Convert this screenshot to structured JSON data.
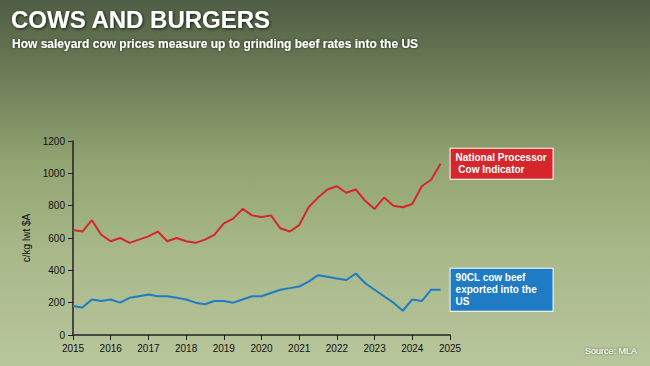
{
  "chart_data": {
    "type": "line",
    "title": "COWS AND BURGERS",
    "subtitle": "How saleyard cow prices measure up to grinding beef rates into the US",
    "y_label": "c/kg lwt $A",
    "annotations": [
      "Source: MLA"
    ],
    "x": [
      2015,
      2015.25,
      2015.5,
      2015.75,
      2016,
      2016.25,
      2016.5,
      2016.75,
      2017,
      2017.25,
      2017.5,
      2017.75,
      2018,
      2018.25,
      2018.5,
      2018.75,
      2019,
      2019.25,
      2019.5,
      2019.75,
      2020,
      2020.25,
      2020.5,
      2020.75,
      2021,
      2021.25,
      2021.5,
      2021.75,
      2022,
      2022.25,
      2022.5,
      2022.75,
      2023,
      2023.25,
      2023.5,
      2023.75,
      2024,
      2024.25,
      2024.5,
      2024.75
    ],
    "series": [
      {
        "name": "National Processor Cow Indicator",
        "color": "#d7262b",
        "values": [
          650,
          640,
          710,
          620,
          580,
          600,
          570,
          590,
          610,
          640,
          580,
          600,
          580,
          570,
          590,
          620,
          690,
          720,
          780,
          740,
          730,
          740,
          660,
          640,
          680,
          790,
          850,
          900,
          920,
          880,
          900,
          830,
          780,
          850,
          800,
          790,
          810,
          920,
          960,
          1060
        ]
      },
      {
        "name": "90CL cow beef exported into the US",
        "color": "#1e7bc4",
        "values": [
          180,
          170,
          220,
          210,
          220,
          200,
          230,
          240,
          250,
          240,
          240,
          230,
          220,
          200,
          190,
          210,
          210,
          200,
          220,
          240,
          240,
          260,
          280,
          290,
          300,
          330,
          370,
          360,
          350,
          340,
          380,
          320,
          280,
          240,
          200,
          150,
          220,
          210,
          280,
          280
        ]
      }
    ],
    "xlim": [
      2015,
      2025
    ],
    "xticks": [
      2015,
      2016,
      2017,
      2018,
      2019,
      2020,
      2021,
      2022,
      2023,
      2024,
      2025
    ],
    "ylim": [
      0,
      1200
    ],
    "yticks": [
      0,
      200,
      400,
      600,
      800,
      1000,
      1200
    ],
    "grid": false
  }
}
